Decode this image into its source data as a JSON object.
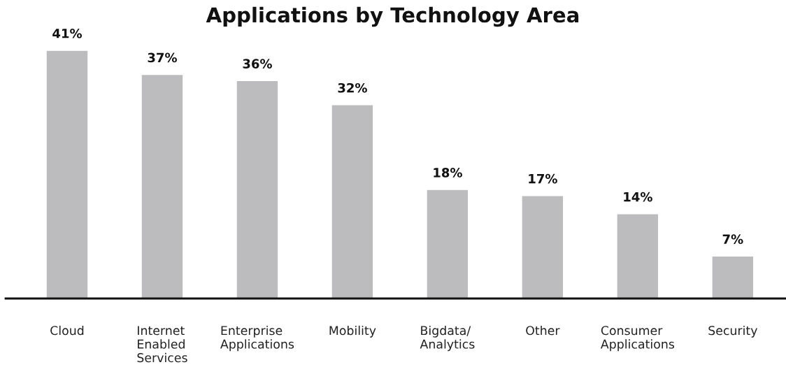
{
  "chart_data": {
    "type": "bar",
    "title": "Applications by Technology Area",
    "categories": [
      "Cloud",
      "Internet\nEnabled\nServices",
      "Enterprise\nApplications",
      "Mobility",
      "Bigdata/\nAnalytics",
      "Other",
      "Consumer\nApplications",
      "Security"
    ],
    "values": [
      41,
      37,
      36,
      32,
      18,
      17,
      14,
      7
    ],
    "value_labels": [
      "41%",
      "37%",
      "36%",
      "32%",
      "18%",
      "17%",
      "14%",
      "7%"
    ],
    "color": "#bcbcbe",
    "grid": false
  }
}
